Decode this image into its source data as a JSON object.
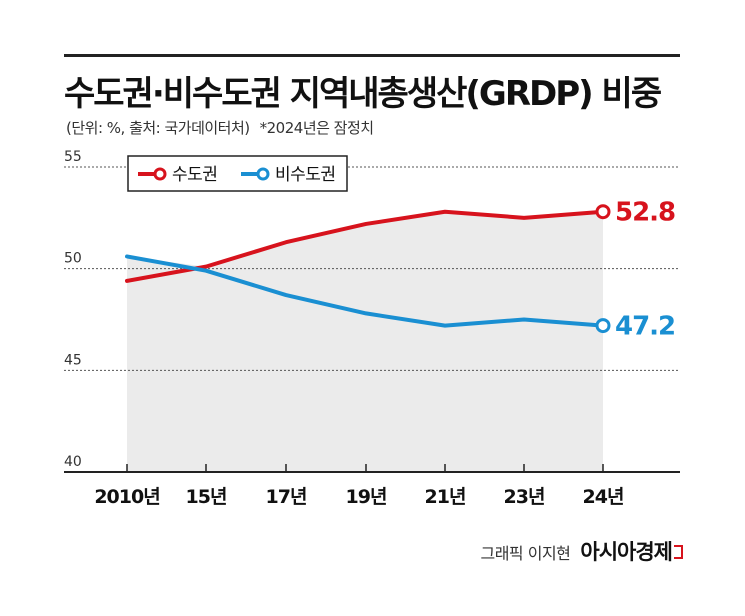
{
  "header": {
    "title": "수도권·비수도권 지역내총생산(GRDP) 비중",
    "subtitle": "(단위: %, 출처: 국가데이터처)",
    "note": "*2024년은 잠정치"
  },
  "credit": {
    "author": "그래픽 이지현",
    "logo": "아시아경제"
  },
  "colors": {
    "capital": "#d7131d",
    "noncapital": "#1a8fd2",
    "area": "#ebebeb"
  },
  "chart_data": {
    "type": "line",
    "categories": [
      "2010년",
      "15년",
      "17년",
      "19년",
      "21년",
      "23년",
      "24년"
    ],
    "series": [
      {
        "name": "수도권",
        "values": [
          49.4,
          50.1,
          51.3,
          52.2,
          52.8,
          52.5,
          52.8
        ],
        "color": "#d7131d"
      },
      {
        "name": "비수도권",
        "values": [
          50.6,
          49.9,
          48.7,
          47.8,
          47.2,
          47.5,
          47.2
        ],
        "color": "#1a8fd2"
      }
    ],
    "end_labels": [
      "52.8",
      "47.2"
    ],
    "yticks": [
      "40",
      "45",
      "50",
      "55"
    ],
    "ylim": [
      40,
      55
    ],
    "grid": true,
    "legend": "top-left",
    "xlabel": "",
    "ylabel": ""
  }
}
